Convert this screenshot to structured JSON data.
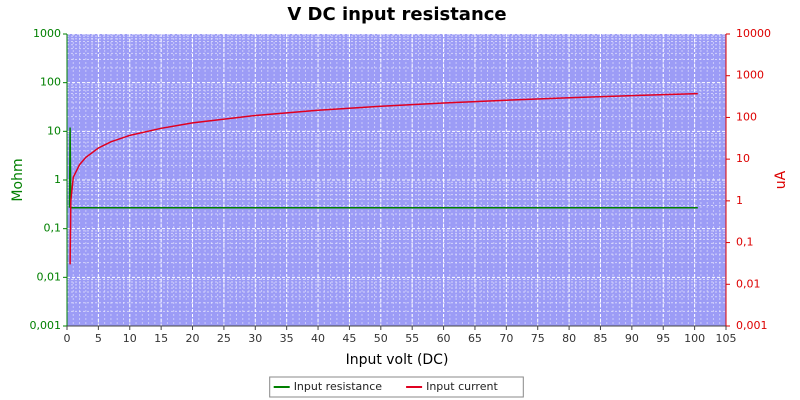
{
  "chart_data": {
    "type": "line",
    "title": "V DC input resistance",
    "x_label": "Input volt (DC)",
    "y_label": "Mohm",
    "y2_label": "uA",
    "xlim": [
      0,
      105
    ],
    "xticks": [
      0,
      5,
      10,
      15,
      20,
      25,
      30,
      35,
      40,
      45,
      50,
      55,
      60,
      65,
      70,
      75,
      80,
      85,
      90,
      95,
      100,
      105
    ],
    "ylim": [
      0.001,
      1000
    ],
    "yticks": [
      {
        "value": 0.001,
        "label": "0,001"
      },
      {
        "value": 0.01,
        "label": "0,01"
      },
      {
        "value": 0.1,
        "label": "0,1"
      },
      1,
      10,
      100,
      1000
    ],
    "y2lim": [
      0.001,
      10000
    ],
    "y2ticks": [
      {
        "value": 0.001,
        "label": "0,001"
      },
      {
        "value": 0.01,
        "label": "0,01"
      },
      {
        "value": 0.1,
        "label": "0,1"
      },
      1,
      10,
      100,
      1000,
      10000
    ],
    "log_scale": true,
    "grid": true,
    "legend": "bottom",
    "y_color": "#008000",
    "y2_color": "#dd0000",
    "background": "#9c9cf6",
    "series": [
      {
        "name": "Input resistance",
        "color": "#008000",
        "axis": "y",
        "x": [
          0.4,
          0.5,
          0.6,
          100.5
        ],
        "values": [
          0.27,
          12,
          0.27,
          0.27
        ]
      },
      {
        "name": "Input current",
        "color": "#e00020",
        "axis": "y2",
        "x": [
          0.5,
          0.6,
          1,
          2,
          3,
          5,
          7,
          10,
          15,
          20,
          30,
          40,
          50,
          60,
          70,
          80,
          90,
          100.5
        ],
        "values": [
          0.03,
          1,
          3.7,
          7.4,
          11,
          18.5,
          26,
          37,
          55,
          74,
          111,
          148,
          185,
          222,
          259,
          296,
          333,
          372
        ]
      }
    ]
  }
}
